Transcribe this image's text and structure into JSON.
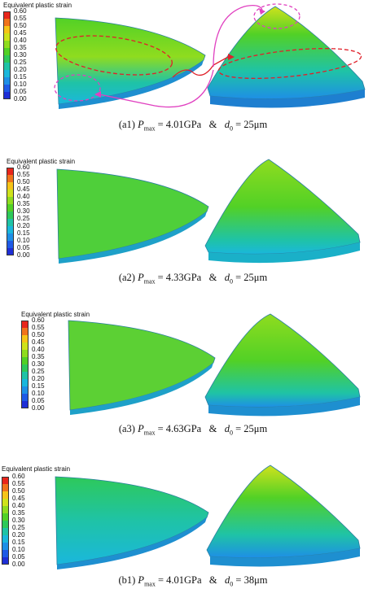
{
  "legend": {
    "title": "Equivalent plastic strain",
    "ticks": [
      "0.60",
      "0.55",
      "0.50",
      "0.45",
      "0.40",
      "0.35",
      "0.30",
      "0.25",
      "0.20",
      "0.15",
      "0.10",
      "0.05",
      "0.00"
    ],
    "colors": [
      "#e8261c",
      "#f0731c",
      "#f6c418",
      "#cfe21c",
      "#8fdc1f",
      "#52d126",
      "#2ec95a",
      "#1fc3a6",
      "#1ab7dc",
      "#1e8fe6",
      "#1e5ae6",
      "#1e2ed6"
    ]
  },
  "panels": [
    {
      "label": "(a1)",
      "p_symbol": "P",
      "p_sub": "max",
      "p_value": "= 4.01GPa",
      "amp": "&",
      "d_symbol": "d",
      "d_sub": "0",
      "d_value": "= 25μm"
    },
    {
      "label": "(a2)",
      "p_symbol": "P",
      "p_sub": "max",
      "p_value": "= 4.33GPa",
      "amp": "&",
      "d_symbol": "d",
      "d_sub": "0",
      "d_value": "= 25μm"
    },
    {
      "label": "(a3)",
      "p_symbol": "P",
      "p_sub": "max",
      "p_value": "= 4.63GPa",
      "amp": "&",
      "d_symbol": "d",
      "d_sub": "0",
      "d_value": "= 25μm"
    },
    {
      "label": "(b1)",
      "p_symbol": "P",
      "p_sub": "max",
      "p_value": "= 4.01GPa",
      "amp": "&",
      "d_symbol": "d",
      "d_sub": "0",
      "d_value": "= 38μm"
    }
  ]
}
